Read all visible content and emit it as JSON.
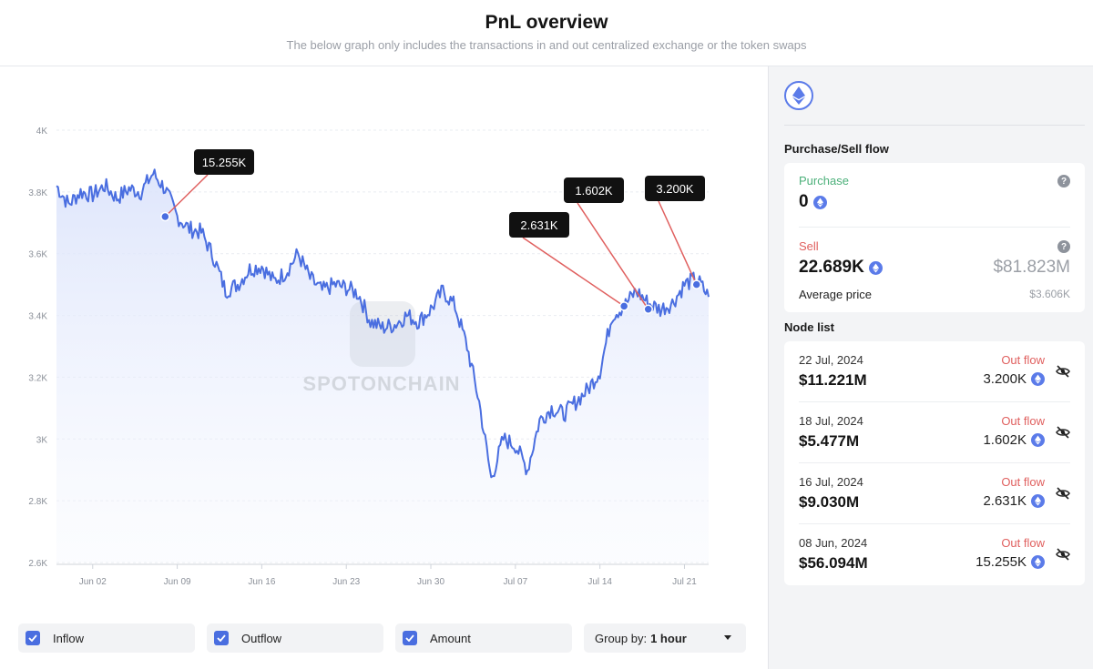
{
  "header": {
    "title": "PnL overview",
    "subtitle": "The below graph only includes the transactions in and out centralized exchange or the token swaps"
  },
  "chart_data": {
    "type": "line",
    "title": "",
    "xlabel": "",
    "ylabel": "",
    "x_tick_labels": [
      "Jun 02",
      "Jun 09",
      "Jun 16",
      "Jun 23",
      "Jun 30",
      "Jul 07",
      "Jul 14",
      "Jul 21"
    ],
    "y_tick_labels": [
      "4K",
      "3.8K",
      "3.6K",
      "3.4K",
      "3.2K",
      "3K",
      "2.8K",
      "2.6K"
    ],
    "ylim": [
      2600,
      4000
    ],
    "xlim": [
      "2024-05-30",
      "2024-07-23"
    ],
    "grid": true,
    "line_color": "#4a6ee0",
    "series": [
      {
        "values": [
          [
            "2024-05-30",
            3820
          ],
          [
            "2024-05-31",
            3760
          ],
          [
            "2024-06-01",
            3800
          ],
          [
            "2024-06-02",
            3790
          ],
          [
            "2024-06-03",
            3820
          ],
          [
            "2024-06-04",
            3780
          ],
          [
            "2024-06-05",
            3810
          ],
          [
            "2024-06-06",
            3800
          ],
          [
            "2024-06-07",
            3860
          ],
          [
            "2024-06-08",
            3810
          ],
          [
            "2024-06-09",
            3720
          ],
          [
            "2024-06-10",
            3680
          ],
          [
            "2024-06-11",
            3670
          ],
          [
            "2024-06-12",
            3590
          ],
          [
            "2024-06-13",
            3480
          ],
          [
            "2024-06-14",
            3500
          ],
          [
            "2024-06-15",
            3550
          ],
          [
            "2024-06-16",
            3560
          ],
          [
            "2024-06-17",
            3510
          ],
          [
            "2024-06-18",
            3540
          ],
          [
            "2024-06-19",
            3600
          ],
          [
            "2024-06-20",
            3520
          ],
          [
            "2024-06-21",
            3480
          ],
          [
            "2024-06-22",
            3500
          ],
          [
            "2024-06-23",
            3490
          ],
          [
            "2024-06-24",
            3470
          ],
          [
            "2024-06-25",
            3380
          ],
          [
            "2024-06-26",
            3360
          ],
          [
            "2024-06-27",
            3370
          ],
          [
            "2024-06-28",
            3400
          ],
          [
            "2024-06-29",
            3380
          ],
          [
            "2024-06-30",
            3420
          ],
          [
            "2024-07-01",
            3480
          ],
          [
            "2024-07-02",
            3430
          ],
          [
            "2024-07-03",
            3300
          ],
          [
            "2024-07-04",
            3120
          ],
          [
            "2024-07-05",
            2870
          ],
          [
            "2024-07-06",
            3000
          ],
          [
            "2024-07-07",
            2980
          ],
          [
            "2024-07-08",
            2900
          ],
          [
            "2024-07-09",
            3060
          ],
          [
            "2024-07-10",
            3100
          ],
          [
            "2024-07-11",
            3080
          ],
          [
            "2024-07-12",
            3120
          ],
          [
            "2024-07-13",
            3160
          ],
          [
            "2024-07-14",
            3220
          ],
          [
            "2024-07-15",
            3400
          ],
          [
            "2024-07-16",
            3430
          ],
          [
            "2024-07-17",
            3480
          ],
          [
            "2024-07-18",
            3440
          ],
          [
            "2024-07-19",
            3420
          ],
          [
            "2024-07-20",
            3440
          ],
          [
            "2024-07-21",
            3500
          ],
          [
            "2024-07-22",
            3520
          ],
          [
            "2024-07-23",
            3460
          ]
        ]
      }
    ],
    "annotations": [
      {
        "label": "15.255K",
        "date": "2024-06-08",
        "price": 3720
      },
      {
        "label": "2.631K",
        "date": "2024-07-16",
        "price": 3430
      },
      {
        "label": "1.602K",
        "date": "2024-07-18",
        "price": 3420
      },
      {
        "label": "3.200K",
        "date": "2024-07-22",
        "price": 3500
      }
    ],
    "watermark": "SPOTONCHAIN"
  },
  "filters": [
    {
      "label": "Inflow",
      "checked": true
    },
    {
      "label": "Outflow",
      "checked": true
    },
    {
      "label": "Amount",
      "checked": true
    }
  ],
  "group_by": {
    "label": "Group by:",
    "value": "1 hour"
  },
  "sidebar": {
    "token_icon": "ethereum-icon",
    "flow_title": "Purchase/Sell flow",
    "purchase": {
      "label": "Purchase",
      "amount": "0"
    },
    "sell": {
      "label": "Sell",
      "amount": "22.689K",
      "usd": "$81.823M"
    },
    "avg_price": {
      "label": "Average price",
      "value": "$3.606K"
    },
    "node_list_title": "Node list",
    "nodes": [
      {
        "date": "22 Jul, 2024",
        "usd": "$11.221M",
        "flow": "Out flow",
        "amount": "3.200K"
      },
      {
        "date": "18 Jul, 2024",
        "usd": "$5.477M",
        "flow": "Out flow",
        "amount": "1.602K"
      },
      {
        "date": "16 Jul, 2024",
        "usd": "$9.030M",
        "flow": "Out flow",
        "amount": "2.631K"
      },
      {
        "date": "08 Jun, 2024",
        "usd": "$56.094M",
        "flow": "Out flow",
        "amount": "15.255K"
      }
    ]
  },
  "colors": {
    "accent": "#4a6ee0",
    "sell": "#e0605f",
    "purchase": "#4cb07a"
  }
}
